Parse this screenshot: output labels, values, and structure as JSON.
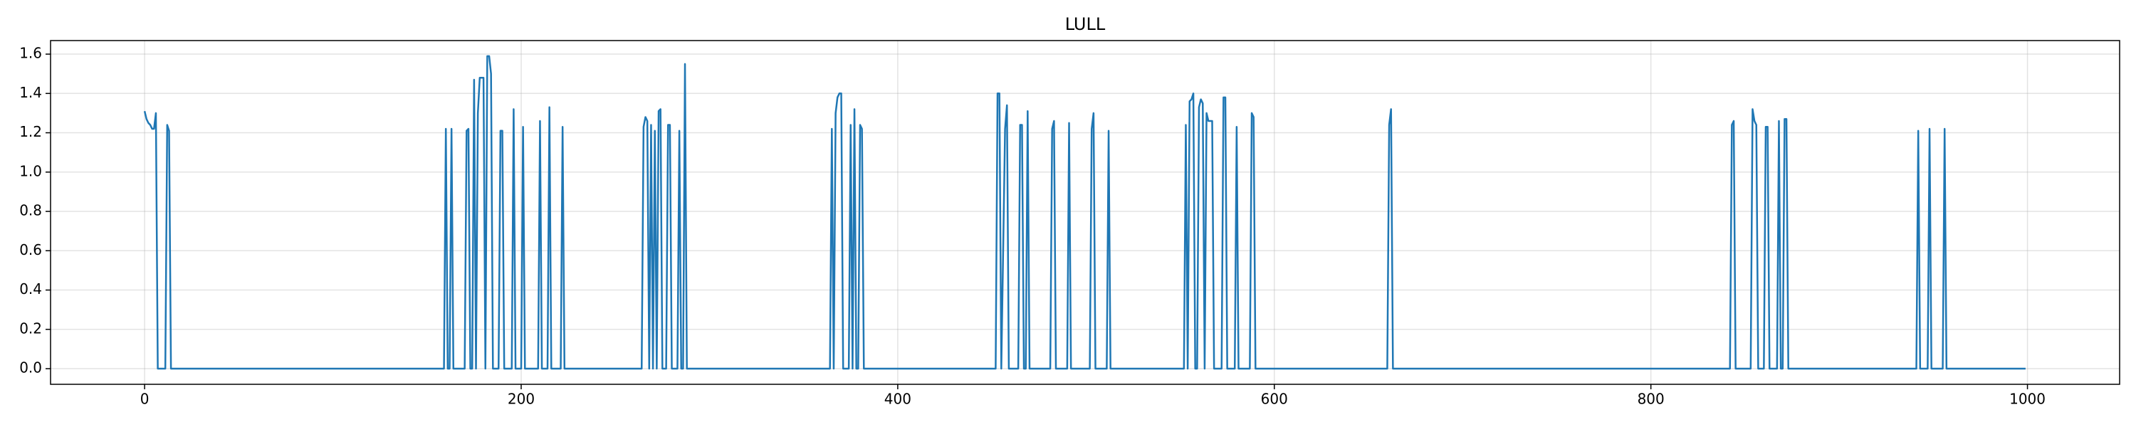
{
  "chart_data": {
    "type": "line",
    "title": "LULL",
    "color": "#1f77b4",
    "grid": true,
    "xlim": [
      -49.95,
      1048.95
    ],
    "ylim": [
      -0.0795,
      1.669
    ],
    "xticks": [
      0,
      200,
      400,
      600,
      800,
      1000
    ],
    "yticks": [
      {
        "value": 0,
        "label": "0.0"
      },
      0.2,
      0.4,
      0.6,
      0.8,
      {
        "value": 1,
        "label": "1.0"
      },
      1.2,
      1.4,
      1.6
    ],
    "x": [
      0,
      1,
      2,
      3,
      4,
      5,
      6,
      7,
      11,
      12,
      13,
      14,
      159,
      160,
      161,
      162,
      163,
      164,
      170,
      171,
      172,
      173,
      174,
      175,
      176,
      177,
      178,
      179,
      180,
      181,
      182,
      183,
      184,
      185,
      188,
      189,
      190,
      191,
      195,
      196,
      197,
      200,
      201,
      202,
      209,
      210,
      211,
      214,
      215,
      216,
      221,
      222,
      223,
      264,
      265,
      266,
      267,
      268,
      269,
      270,
      271,
      272,
      273,
      274,
      275,
      277,
      278,
      279,
      280,
      283,
      284,
      285,
      286,
      287,
      288,
      364,
      365,
      366,
      367,
      368,
      369,
      370,
      371,
      374,
      375,
      376,
      377,
      378,
      379,
      380,
      381,
      382,
      452,
      453,
      454,
      455,
      457,
      458,
      459,
      464,
      465,
      466,
      467,
      468,
      469,
      470,
      481,
      482,
      483,
      484,
      490,
      491,
      492,
      502,
      503,
      504,
      505,
      511,
      512,
      513,
      552,
      553,
      554,
      555,
      556,
      557,
      558,
      559,
      560,
      561,
      562,
      563,
      564,
      565,
      566,
      567,
      568,
      572,
      573,
      574,
      575,
      579,
      580,
      581,
      587,
      588,
      589,
      590,
      660,
      661,
      662,
      663,
      842,
      843,
      844,
      845,
      853,
      854,
      855,
      856,
      857,
      860,
      861,
      862,
      863,
      867,
      868,
      869,
      870,
      871,
      872,
      873,
      941,
      942,
      943,
      947,
      948,
      949,
      955,
      956,
      957,
      999
    ],
    "values": [
      1.31,
      1.27,
      1.25,
      1.24,
      1.22,
      1.22,
      1.3,
      0,
      0,
      1.24,
      1.21,
      0,
      0,
      1.22,
      0,
      0,
      1.22,
      0,
      0,
      1.21,
      1.22,
      0,
      0,
      1.47,
      0,
      1.3,
      1.48,
      1.48,
      1.48,
      0,
      1.59,
      1.59,
      1.5,
      0,
      0,
      1.21,
      1.21,
      0,
      0,
      1.32,
      0,
      0,
      1.23,
      0,
      0,
      1.26,
      0,
      0,
      1.33,
      0,
      0,
      1.23,
      0,
      0,
      1.23,
      1.28,
      1.26,
      0,
      1.24,
      0,
      1.21,
      0,
      1.31,
      1.32,
      0,
      0,
      1.24,
      1.24,
      0,
      0,
      1.21,
      0,
      0,
      1.55,
      0,
      0,
      1.22,
      0,
      1.3,
      1.38,
      1.4,
      1.4,
      0,
      0,
      1.24,
      0,
      1.32,
      0,
      0,
      1.24,
      1.22,
      0,
      0,
      1.4,
      1.4,
      0,
      1.22,
      1.34,
      0,
      0,
      1.24,
      1.24,
      0,
      0,
      1.31,
      0,
      0,
      1.22,
      1.26,
      0,
      0,
      1.25,
      0,
      0,
      1.22,
      1.3,
      0,
      0,
      1.21,
      0,
      0,
      1.24,
      0,
      1.36,
      1.37,
      1.4,
      0,
      0,
      1.33,
      1.37,
      1.35,
      0,
      1.3,
      1.26,
      1.26,
      1.26,
      0,
      0,
      1.38,
      1.38,
      0,
      0,
      1.23,
      0,
      0,
      1.3,
      1.28,
      0,
      0,
      1.24,
      1.32,
      0,
      0,
      1.24,
      1.26,
      0,
      0,
      1.32,
      1.26,
      1.24,
      0,
      0,
      1.23,
      1.23,
      0,
      0,
      1.26,
      0,
      0,
      1.27,
      1.27,
      0,
      0,
      1.21,
      0,
      0,
      1.22,
      0,
      0,
      1.22,
      0,
      0
    ]
  }
}
